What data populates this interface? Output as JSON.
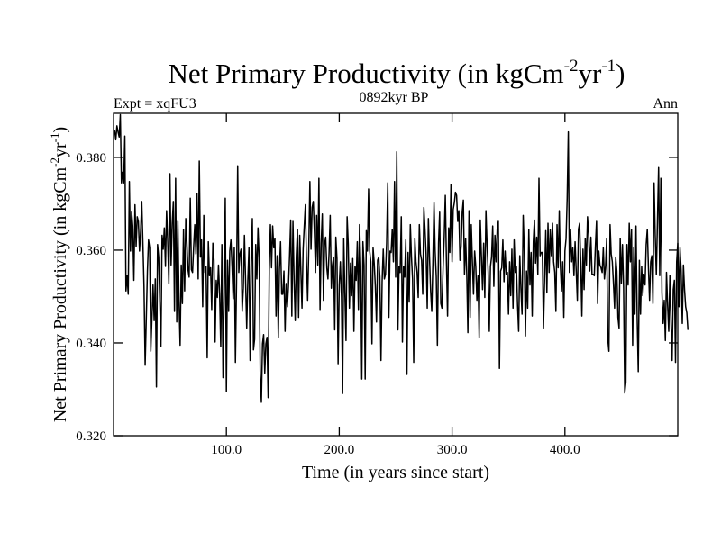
{
  "chart_data": {
    "type": "line",
    "title": "Net Primary Productivity (in kgCm",
    "title_sup1": "-2",
    "title_mid": "yr",
    "title_sup2": "-1",
    "title_end": ")",
    "left_annotation": "Expt = xqFU3",
    "center_annotation": "0892kyr BP",
    "right_annotation": "Ann",
    "xlabel": "Time (in years since start)",
    "ylabel": "Net Primary Productivity (in kgCm",
    "ylabel_sup1": "-2",
    "ylabel_mid": "yr",
    "ylabel_sup2": "-1",
    "ylabel_end": ")",
    "xlim": [
      0,
      500
    ],
    "ylim": [
      0.32,
      0.3895
    ],
    "x_ticks": [
      100,
      200,
      300,
      400
    ],
    "x_tick_labels": [
      "100.0",
      "200.0",
      "300.0",
      "400.0"
    ],
    "y_ticks": [
      0.32,
      0.34,
      0.36,
      0.38
    ],
    "y_tick_labels": [
      "0.320",
      "0.340",
      "0.360",
      "0.380"
    ],
    "series": [
      {
        "name": "Ann",
        "x_start": 1,
        "x_step": 1,
        "values": [
          0.3858,
          0.3838,
          0.3868,
          0.3855,
          0.3844,
          0.3892,
          0.3745,
          0.3768,
          0.3745,
          0.3846,
          0.3512,
          0.3545,
          0.3505,
          0.3748,
          0.3598,
          0.3682,
          0.3652,
          0.3535,
          0.3698,
          0.3608,
          0.3672,
          0.3662,
          0.3598,
          0.3642,
          0.3705,
          0.3618,
          0.3522,
          0.3352,
          0.3452,
          0.3555,
          0.3622,
          0.3605,
          0.3382,
          0.3452,
          0.3525,
          0.3448,
          0.3538,
          0.3305,
          0.3612,
          0.3585,
          0.3488,
          0.3392,
          0.3632,
          0.3602,
          0.3648,
          0.3565,
          0.3685,
          0.3618,
          0.3528,
          0.3765,
          0.3568,
          0.3658,
          0.3705,
          0.3468,
          0.3755,
          0.3445,
          0.3662,
          0.3492,
          0.3395,
          0.3568,
          0.3485,
          0.3645,
          0.3512,
          0.3668,
          0.3615,
          0.3558,
          0.3542,
          0.3712,
          0.3558,
          0.3552,
          0.3608,
          0.3655,
          0.3592,
          0.3722,
          0.3538,
          0.3792,
          0.3585,
          0.3622,
          0.3478,
          0.3675,
          0.3552,
          0.3565,
          0.3368,
          0.3618,
          0.3545,
          0.3562,
          0.3472,
          0.3615,
          0.3578,
          0.3402,
          0.3535,
          0.3498,
          0.3568,
          0.3505,
          0.3392,
          0.3612,
          0.3325,
          0.3502,
          0.3712,
          0.3295,
          0.3578,
          0.3468,
          0.3598,
          0.3622,
          0.3565,
          0.3495,
          0.3605,
          0.3358,
          0.3532,
          0.3782,
          0.3552,
          0.3592,
          0.3602,
          0.3468,
          0.3518,
          0.3632,
          0.3535,
          0.3432,
          0.3535,
          0.3605,
          0.3362,
          0.3572,
          0.3668,
          0.3385,
          0.3408,
          0.3612,
          0.3538,
          0.3648,
          0.3585,
          0.3332,
          0.3272,
          0.3398,
          0.3418,
          0.3335,
          0.3398,
          0.3412,
          0.3282,
          0.3558,
          0.3655,
          0.3562,
          0.3652,
          0.3605,
          0.3625,
          0.3458,
          0.3588,
          0.3412,
          0.3558,
          0.3618,
          0.3505,
          0.3505,
          0.3555,
          0.3425,
          0.3528,
          0.3478,
          0.3522,
          0.3588,
          0.3665,
          0.3458,
          0.3662,
          0.3535,
          0.3448,
          0.3588,
          0.3645,
          0.3455,
          0.3632,
          0.3555,
          0.3475,
          0.3602,
          0.3652,
          0.3698,
          0.3575,
          0.3492,
          0.3602,
          0.3748,
          0.3602,
          0.3692,
          0.3705,
          0.3638,
          0.3552,
          0.3675,
          0.3568,
          0.3755,
          0.3472,
          0.3615,
          0.3678,
          0.3492,
          0.3612,
          0.3628,
          0.3562,
          0.3538,
          0.3595,
          0.3675,
          0.3518,
          0.3568,
          0.3585,
          0.3428,
          0.3628,
          0.3582,
          0.3355,
          0.3525,
          0.3575,
          0.3498,
          0.3291,
          0.3625,
          0.3508,
          0.3405,
          0.3672,
          0.3612,
          0.3475,
          0.3572,
          0.3502,
          0.3582,
          0.3425,
          0.3565,
          0.3535,
          0.3618,
          0.3472,
          0.3655,
          0.3568,
          0.3322,
          0.3618,
          0.3568,
          0.3322,
          0.3642,
          0.3598,
          0.3732,
          0.3598,
          0.3575,
          0.3398,
          0.3605,
          0.3572,
          0.3522,
          0.3445,
          0.3578,
          0.3585,
          0.3542,
          0.3362,
          0.3532,
          0.3602,
          0.3538,
          0.3548,
          0.3615,
          0.3745,
          0.3455,
          0.3598,
          0.3595,
          0.3645,
          0.3575,
          0.3748,
          0.3542,
          0.3812,
          0.3428,
          0.3565,
          0.3552,
          0.3672,
          0.3402,
          0.3565,
          0.3542,
          0.3622,
          0.3332,
          0.3595,
          0.3488,
          0.3655,
          0.3585,
          0.3538,
          0.3358,
          0.3625,
          0.3575,
          0.3552,
          0.3498,
          0.3655,
          0.3592,
          0.3578,
          0.3505,
          0.3692,
          0.3645,
          0.3592,
          0.3475,
          0.3668,
          0.3585,
          0.3512,
          0.3468,
          0.3575,
          0.3702,
          0.3598,
          0.3542,
          0.3395,
          0.3615,
          0.3682,
          0.3485,
          0.3475,
          0.3558,
          0.3628,
          0.3718,
          0.3575,
          0.3458,
          0.3648,
          0.3595,
          0.3742,
          0.3575,
          0.3688,
          0.3702,
          0.3725,
          0.3718,
          0.3662,
          0.3685,
          0.3578,
          0.3608,
          0.3682,
          0.3708,
          0.3548,
          0.3625,
          0.3548,
          0.3422,
          0.3685,
          0.3455,
          0.3655,
          0.3575,
          0.3505,
          0.3598,
          0.3565,
          0.3492,
          0.3545,
          0.3412,
          0.3665,
          0.3588,
          0.3515,
          0.3615,
          0.3498,
          0.3685,
          0.3612,
          0.3552,
          0.3425,
          0.3565,
          0.3585,
          0.3652,
          0.3522,
          0.3632,
          0.3575,
          0.3645,
          0.3662,
          0.3345,
          0.3555,
          0.3562,
          0.3622,
          0.3532,
          0.3598,
          0.3548,
          0.3552,
          0.3462,
          0.3575,
          0.3502,
          0.3602,
          0.3475,
          0.3622,
          0.3552,
          0.3565,
          0.3482,
          0.3425,
          0.3588,
          0.3518,
          0.3462,
          0.3675,
          0.3598,
          0.3415,
          0.3555,
          0.3475,
          0.3645,
          0.3525,
          0.3595,
          0.3458,
          0.3618,
          0.3665,
          0.3572,
          0.3628,
          0.3548,
          0.3755,
          0.3588,
          0.3595,
          0.3595,
          0.3432,
          0.3538,
          0.3642,
          0.3508,
          0.3658,
          0.3552,
          0.3645,
          0.3588,
          0.3658,
          0.3575,
          0.3552,
          0.3468,
          0.3655,
          0.3562,
          0.3685,
          0.3565,
          0.3512,
          0.3575,
          0.3455,
          0.3598,
          0.3625,
          0.3712,
          0.3855,
          0.3552,
          0.3645,
          0.3575,
          0.3605,
          0.3545,
          0.3618,
          0.3555,
          0.3492,
          0.3645,
          0.3658,
          0.3575,
          0.3458,
          0.3602,
          0.3515,
          0.3625,
          0.3568,
          0.3672,
          0.3635,
          0.3555,
          0.3628,
          0.3548,
          0.3548,
          0.3545,
          0.3608,
          0.3662,
          0.3485,
          0.3598,
          0.3568,
          0.3562,
          0.3552,
          0.3605,
          0.3538,
          0.3565,
          0.3625,
          0.3408,
          0.3382,
          0.3655,
          0.3592,
          0.3575,
          0.3528,
          0.3475,
          0.3585,
          0.3555,
          0.3455,
          0.3432,
          0.3625,
          0.3528,
          0.3612,
          0.3518,
          0.3292,
          0.3315,
          0.3612,
          0.3525,
          0.3658,
          0.3575,
          0.3645,
          0.3395,
          0.3605,
          0.3462,
          0.3652,
          0.3455,
          0.3338,
          0.3578,
          0.3462,
          0.3565,
          0.3502,
          0.3548,
          0.3525,
          0.3612,
          0.3645,
          0.3562,
          0.3492,
          0.3575,
          0.3588,
          0.3485,
          0.3745,
          0.3632,
          0.3548,
          0.3662,
          0.3778,
          0.3545,
          0.3755,
          0.3508,
          0.3442,
          0.3492,
          0.3405,
          0.3552,
          0.3482,
          0.3425,
          0.3545,
          0.3442,
          0.3362,
          0.3515,
          0.3535,
          0.3358,
          0.3575,
          0.3615,
          0.3478,
          0.3605,
          0.3555,
          0.3442,
          0.3568,
          0.3515,
          0.3478,
          0.3465,
          0.3428
        ]
      }
    ]
  }
}
